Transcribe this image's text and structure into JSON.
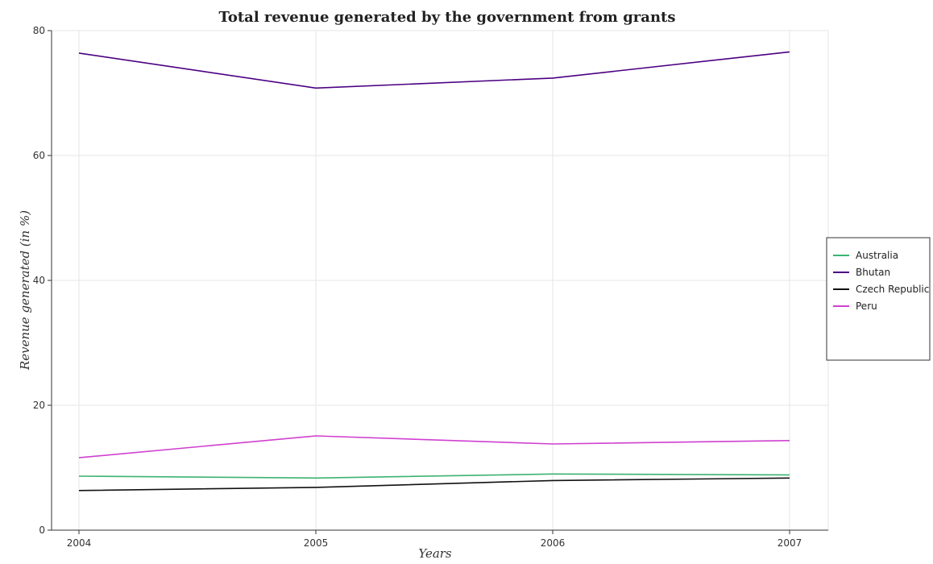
{
  "chart_data": {
    "type": "line",
    "title": "Total revenue generated by the government from grants",
    "xlabel": "Years",
    "ylabel": "Revenue generated (in %)",
    "x": [
      "2004",
      "2005",
      "2006",
      "2007"
    ],
    "ylim": [
      0,
      80
    ],
    "yticks": [
      0,
      20,
      40,
      60,
      80
    ],
    "grid": true,
    "legend_position": "right",
    "series": [
      {
        "name": "Australia",
        "color": "#3cb371",
        "values": [
          8.65,
          8.35,
          9.0,
          8.85
        ]
      },
      {
        "name": "Bhutan",
        "color": "#4b0082",
        "values": [
          76.4,
          70.8,
          72.4,
          76.6
        ]
      },
      {
        "name": "Czech Republic",
        "color": "#111111",
        "values": [
          6.35,
          6.85,
          7.95,
          8.35
        ]
      },
      {
        "name": "Peru",
        "color": "#d040d0",
        "values": [
          11.6,
          15.1,
          13.8,
          14.35
        ]
      }
    ]
  }
}
